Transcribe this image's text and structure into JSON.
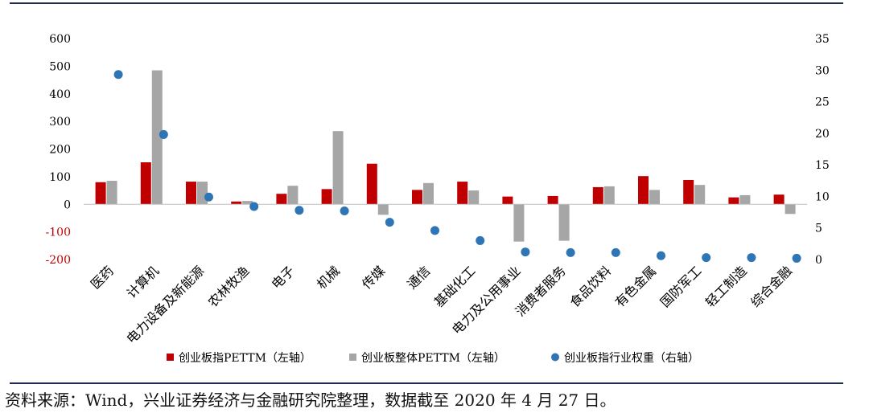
{
  "chart_data": {
    "type": "bar",
    "title": "",
    "categories": [
      "医药",
      "计算机",
      "电力设备及新能源",
      "农林牧渔",
      "电子",
      "机械",
      "传媒",
      "通信",
      "基础化工",
      "电力及公用事业",
      "消费者服务",
      "食品饮料",
      "有色金属",
      "国防军工",
      "轻工制造",
      "综合金融"
    ],
    "series": [
      {
        "name": "创业板指PETTM（左轴）",
        "type": "bar",
        "axis": "left",
        "color": "#c00000",
        "values": [
          80,
          152,
          82,
          10,
          38,
          55,
          147,
          52,
          82,
          28,
          30,
          62,
          102,
          88,
          25,
          35
        ]
      },
      {
        "name": "创业板整体PETTM（左轴）",
        "type": "bar",
        "axis": "left",
        "color": "#a6a6a6",
        "values": [
          85,
          485,
          82,
          12,
          67,
          265,
          -38,
          77,
          50,
          -135,
          -132,
          65,
          52,
          70,
          33,
          -35
        ]
      },
      {
        "name": "创业板指行业权重（右轴）",
        "type": "scatter",
        "axis": "right",
        "color": "#2e75b6",
        "values": [
          29.3,
          19.8,
          9.9,
          8.4,
          7.8,
          7.7,
          5.9,
          4.6,
          3.0,
          1.2,
          1.1,
          1.1,
          0.6,
          0.3,
          0.3,
          0.2
        ]
      }
    ],
    "y_left": {
      "min": -200,
      "max": 600,
      "ticks": [
        600,
        500,
        400,
        300,
        200,
        100,
        0,
        -100,
        -200
      ],
      "negative_tick_color": "#c00000"
    },
    "y_right": {
      "min": 0,
      "max": 35,
      "ticks": [
        35,
        30,
        25,
        20,
        15,
        10,
        5,
        0
      ]
    },
    "legend": "bottom",
    "grid": false
  },
  "source_note": "资料来源：Wind，兴业证券经济与金融研究院整理，数据截至 2020 年 4 月 27 日。"
}
